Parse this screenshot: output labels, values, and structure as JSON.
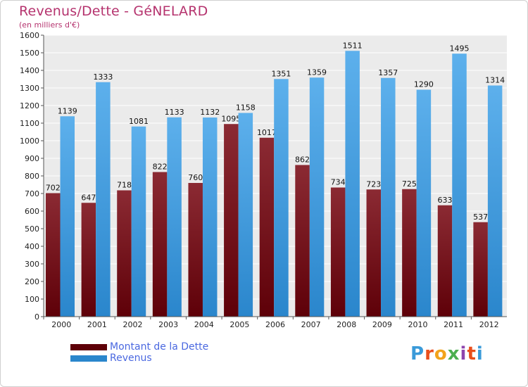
{
  "header": {
    "title": "Revenus/Dette - GéNELARD",
    "subtitle": "(en milliers d'€)"
  },
  "logo": {
    "text": "Proxiti"
  },
  "colors": {
    "dette_top": "#8b2a33",
    "dette_bottom": "#5e0008",
    "revenus_top": "#5db0ec",
    "revenus_bottom": "#2a86cc",
    "title": "#b5336e",
    "legend_text": "#4a68e0"
  },
  "chart_data": {
    "type": "bar",
    "title": "Revenus/Dette - GéNELARD",
    "subtitle": "(en milliers d'€)",
    "categories": [
      "2000",
      "2001",
      "2002",
      "2003",
      "2004",
      "2005",
      "2006",
      "2007",
      "2008",
      "2009",
      "2010",
      "2011",
      "2012"
    ],
    "series": [
      {
        "name": "Montant de la Dette",
        "values": [
          702,
          647,
          718,
          822,
          760,
          1095,
          1017,
          862,
          734,
          723,
          725,
          633,
          537
        ],
        "labels": [
          "702",
          "647",
          "718",
          "822",
          "760",
          "1095",
          "1017",
          "862",
          "734",
          "723",
          "725",
          "633",
          "537"
        ]
      },
      {
        "name": "Revenus",
        "values": [
          1139,
          1333,
          1081,
          1133,
          1132,
          1158,
          1351,
          1359,
          1511,
          1357,
          1290,
          1495,
          1314
        ],
        "labels": [
          "1139",
          "1333",
          "1081",
          "1133",
          "1132",
          "1158",
          "1351",
          "1359",
          "1511",
          "1357",
          "1290",
          "1495",
          "1314"
        ]
      }
    ],
    "yticks": [
      0,
      100,
      200,
      300,
      400,
      500,
      600,
      700,
      800,
      900,
      1000,
      1100,
      1200,
      1300,
      1400,
      1500,
      1600
    ],
    "ylim": [
      0,
      1600
    ],
    "grid": true,
    "legend_position": "bottom-left"
  }
}
